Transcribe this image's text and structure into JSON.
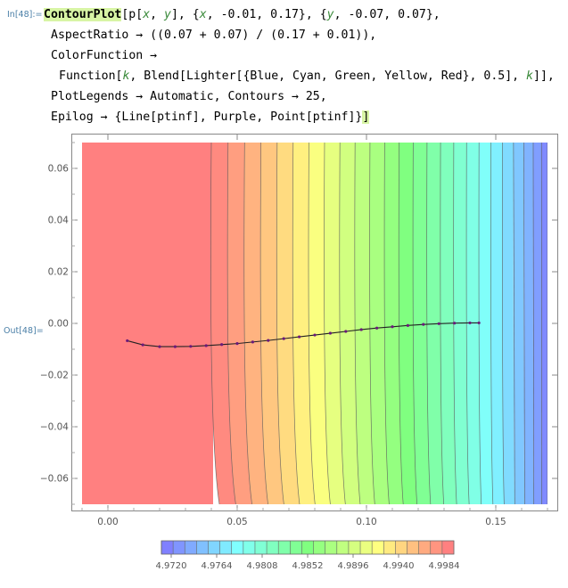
{
  "cell": {
    "in_label": "In[48]:=",
    "out_label": "Out[48]="
  },
  "code_lines": [
    {
      "prefix": "",
      "head": "ContourPlot",
      "rest": "[p[x, y], {x, -0.01, 0.17}, {y, -0.07, 0.07},",
      "indent": 0
    },
    {
      "prefix": "",
      "head": "",
      "rest": "AspectRatio → ((0.07 + 0.07) / (0.17 + 0.01)),",
      "indent": 8
    },
    {
      "prefix": "",
      "head": "",
      "rest": "ColorFunction →",
      "indent": 8
    },
    {
      "prefix": "",
      "head": "",
      "rest": "Function[k, Blend[Lighter[{Blue, Cyan, Green, Yellow, Red}, 0.5], k]],",
      "indent": 17
    },
    {
      "prefix": "",
      "head": "",
      "rest": "PlotLegends → Automatic, Contours → 25,",
      "indent": 8
    },
    {
      "prefix": "",
      "head": "",
      "rest": "Epilog → {Line[ptinf], Purple, Point[ptinf]}]",
      "indent": 8
    }
  ],
  "chart_data": {
    "type": "contour",
    "x_ticks": [
      "0.00",
      "0.05",
      "0.10",
      "0.15"
    ],
    "y_ticks": [
      "0.06",
      "0.04",
      "0.02",
      "0.00",
      "−0.02",
      "−0.04",
      "−0.06"
    ],
    "xlim": [
      -0.01,
      0.17
    ],
    "ylim": [
      -0.07,
      0.07
    ],
    "contour_count": 25,
    "palette": [
      "#8080ff",
      "#80ffff",
      "#80ff80",
      "#ffff80",
      "#ff8080"
    ],
    "legend_labels": [
      "4.9720",
      "4.9764",
      "4.9808",
      "4.9852",
      "4.9896",
      "4.9940",
      "4.9984"
    ],
    "legend_placement": "bottom",
    "epilog_points": [
      {
        "x": 0.0075,
        "y": -0.0067
      },
      {
        "x": 0.0135,
        "y": -0.0083
      },
      {
        "x": 0.02,
        "y": -0.009
      },
      {
        "x": 0.026,
        "y": -0.009
      },
      {
        "x": 0.032,
        "y": -0.0089
      },
      {
        "x": 0.038,
        "y": -0.0086
      },
      {
        "x": 0.044,
        "y": -0.0082
      },
      {
        "x": 0.05,
        "y": -0.0078
      },
      {
        "x": 0.056,
        "y": -0.0072
      },
      {
        "x": 0.062,
        "y": -0.0066
      },
      {
        "x": 0.068,
        "y": -0.0059
      },
      {
        "x": 0.074,
        "y": -0.0052
      },
      {
        "x": 0.08,
        "y": -0.0045
      },
      {
        "x": 0.086,
        "y": -0.0038
      },
      {
        "x": 0.092,
        "y": -0.0031
      },
      {
        "x": 0.098,
        "y": -0.0024
      },
      {
        "x": 0.104,
        "y": -0.0018
      },
      {
        "x": 0.11,
        "y": -0.0013
      },
      {
        "x": 0.116,
        "y": -0.0008
      },
      {
        "x": 0.122,
        "y": -0.0004
      },
      {
        "x": 0.128,
        "y": -0.0001
      },
      {
        "x": 0.134,
        "y": 0.0001
      },
      {
        "x": 0.14,
        "y": 0.0002
      },
      {
        "x": 0.1435,
        "y": 0.0002
      }
    ]
  }
}
